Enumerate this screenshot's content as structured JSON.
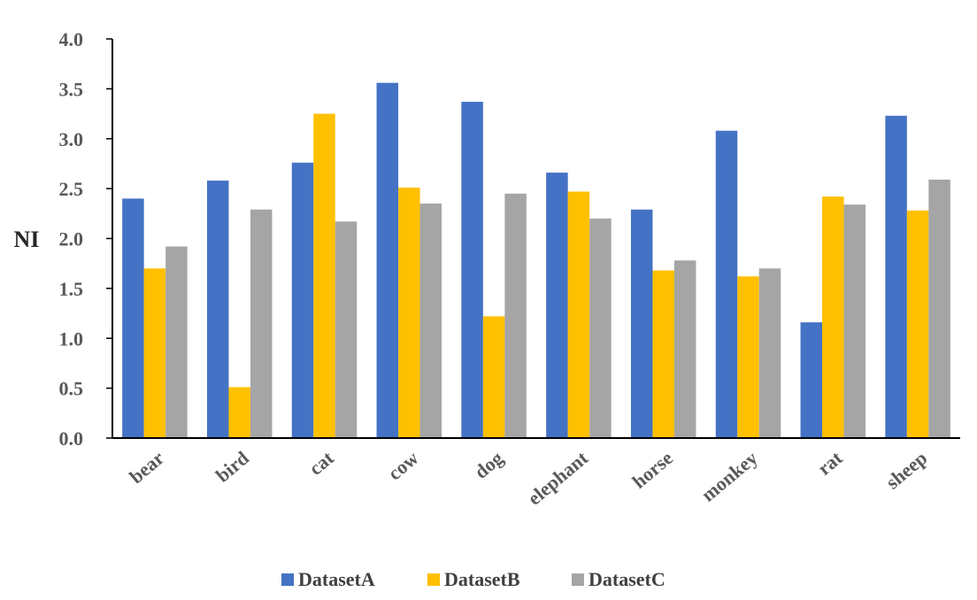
{
  "chart_data": {
    "type": "bar",
    "title": "",
    "xlabel": "",
    "ylabel": "NI",
    "ylim": [
      0,
      4.0
    ],
    "yticks": [
      "0.0",
      "0.5",
      "1.0",
      "1.5",
      "2.0",
      "2.5",
      "3.0",
      "3.5",
      "4.0"
    ],
    "grid": false,
    "legend_position": "bottom",
    "categories": [
      "bear",
      "bird",
      "cat",
      "cow",
      "dog",
      "elephant",
      "horse",
      "monkey",
      "rat",
      "sheep"
    ],
    "series": [
      {
        "name": "DatasetA",
        "color": "#4472C4",
        "values": [
          2.4,
          2.58,
          2.76,
          3.56,
          3.37,
          2.66,
          2.29,
          3.08,
          1.16,
          3.23
        ]
      },
      {
        "name": "DatasetB",
        "color": "#FFC000",
        "values": [
          1.7,
          0.51,
          3.25,
          2.51,
          1.22,
          2.47,
          1.68,
          1.62,
          2.42,
          2.28
        ]
      },
      {
        "name": "DatasetC",
        "color": "#A5A5A5",
        "values": [
          1.92,
          2.29,
          2.17,
          2.35,
          2.45,
          2.2,
          1.78,
          1.7,
          2.34,
          2.59
        ]
      }
    ]
  }
}
